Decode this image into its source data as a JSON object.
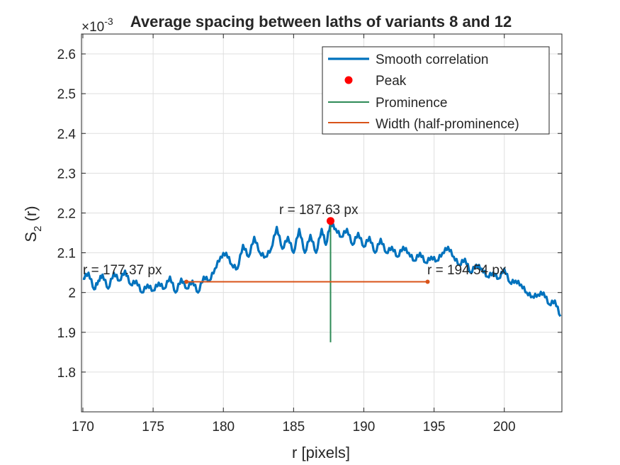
{
  "chart_data": {
    "type": "line",
    "title": "Average spacing between laths of variants 8 and 12",
    "xlabel": "r [pixels]",
    "ylabel": "S",
    "ylabel_sub": "2",
    "ylabel_tail": " (r)",
    "y_exponent_times": "×10",
    "y_exponent_power": "-3",
    "xlim": [
      169.9,
      204.1
    ],
    "ylim": [
      1.7,
      2.65
    ],
    "xticks": [
      170,
      175,
      180,
      185,
      190,
      195,
      200
    ],
    "yticks": [
      1.8,
      1.9,
      2.0,
      2.1,
      2.2,
      2.3,
      2.4,
      2.5,
      2.6
    ],
    "ytick_labels": [
      "1.8",
      "1.9",
      "2",
      "2.1",
      "2.2",
      "2.3",
      "2.4",
      "2.5",
      "2.6"
    ],
    "grid": true,
    "legend_position": "top-right",
    "series": [
      {
        "name": "Smooth correlation",
        "color": "#0072BD",
        "x": [
          170.0,
          170.4,
          170.8,
          171.1,
          171.4,
          171.8,
          172.2,
          172.6,
          173.0,
          173.4,
          173.8,
          174.2,
          174.6,
          175.0,
          175.4,
          175.8,
          176.2,
          176.6,
          177.0,
          177.4,
          177.8,
          178.2,
          178.6,
          179.0,
          179.4,
          179.8,
          180.2,
          180.6,
          181.0,
          181.4,
          181.8,
          182.2,
          182.6,
          183.0,
          183.4,
          183.8,
          184.2,
          184.6,
          185.0,
          185.4,
          185.8,
          186.2,
          186.6,
          187.0,
          187.3,
          187.63,
          188.0,
          188.4,
          188.8,
          189.2,
          189.6,
          190.0,
          190.4,
          190.8,
          191.2,
          191.6,
          192.0,
          192.4,
          192.8,
          193.2,
          193.6,
          194.0,
          194.4,
          194.8,
          195.2,
          195.6,
          196.0,
          196.4,
          196.8,
          197.2,
          197.6,
          198.0,
          198.4,
          198.8,
          199.2,
          199.6,
          200.0,
          200.4,
          200.8,
          201.2,
          201.6,
          202.0,
          202.4,
          202.8,
          203.2,
          203.6,
          204.0
        ],
        "y": [
          2.035,
          2.05,
          2.008,
          2.03,
          2.045,
          2.01,
          2.05,
          2.03,
          2.055,
          2.02,
          2.03,
          2.0,
          2.02,
          2.005,
          2.025,
          2.01,
          2.04,
          2.0,
          2.035,
          2.01,
          2.03,
          2.0,
          2.04,
          2.03,
          2.06,
          2.09,
          2.1,
          2.07,
          2.06,
          2.12,
          2.09,
          2.14,
          2.1,
          2.09,
          2.11,
          2.165,
          2.11,
          2.14,
          2.1,
          2.16,
          2.1,
          2.145,
          2.1,
          2.16,
          2.12,
          2.175,
          2.16,
          2.14,
          2.16,
          2.12,
          2.15,
          2.115,
          2.14,
          2.1,
          2.135,
          2.1,
          2.115,
          2.09,
          2.115,
          2.1,
          2.08,
          2.1,
          2.075,
          2.09,
          2.08,
          2.1,
          2.115,
          2.09,
          2.07,
          2.085,
          2.05,
          2.07,
          2.06,
          2.04,
          2.05,
          2.035,
          2.06,
          2.025,
          2.03,
          2.02,
          2.0,
          1.99,
          1.995,
          2.0,
          1.97,
          1.98,
          1.94
        ]
      }
    ],
    "peak": {
      "name": "Peak",
      "x": 187.63,
      "y": 2.18,
      "color": "#FF0000",
      "label": "r = 187.63 px"
    },
    "prominence": {
      "name": "Prominence",
      "x": 187.63,
      "y_low": 1.875,
      "y_high": 2.175,
      "color": "#2E8B57"
    },
    "width": {
      "name": "Width (half-prominence)",
      "x_left": 177.37,
      "x_right": 194.54,
      "y": 2.027,
      "color": "#D95319",
      "label_left": "r = 177.37 px",
      "label_right": "r = 194.54 px"
    }
  }
}
